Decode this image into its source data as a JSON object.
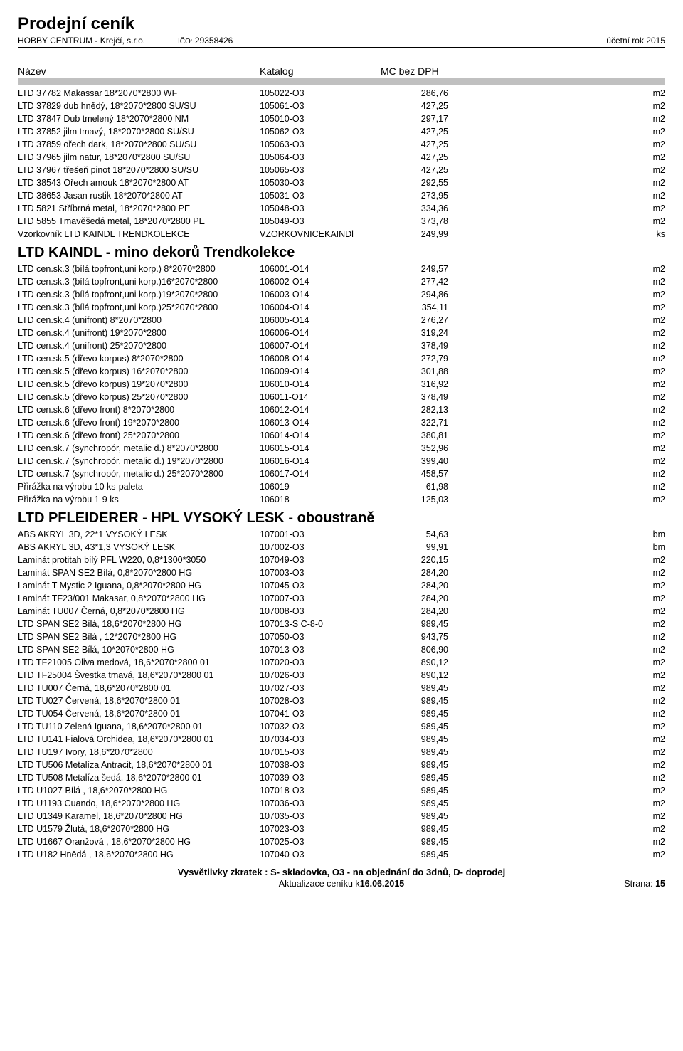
{
  "header": {
    "title": "Prodejní ceník",
    "company": "HOBBY CENTRUM - Krejčí, s.r.o.",
    "ico_label": "IČO:",
    "ico": "29358426",
    "year": "účetní rok 2015"
  },
  "columns": {
    "name": "Název",
    "catalog": "Katalog",
    "mc": "MC bez DPH"
  },
  "section1": {
    "rows": [
      {
        "name": "LTD 37782 Makassar 18*2070*2800 WF",
        "cat": "105022-O3",
        "price": "286,76",
        "unit": "m2"
      },
      {
        "name": "LTD 37829 dub hnědý, 18*2070*2800 SU/SU",
        "cat": "105061-O3",
        "price": "427,25",
        "unit": "m2"
      },
      {
        "name": "LTD 37847 Dub tmelený 18*2070*2800 NM",
        "cat": "105010-O3",
        "price": "297,17",
        "unit": "m2"
      },
      {
        "name": "LTD 37852 jilm tmavý, 18*2070*2800 SU/SU",
        "cat": "105062-O3",
        "price": "427,25",
        "unit": "m2"
      },
      {
        "name": "LTD 37859 ořech dark, 18*2070*2800 SU/SU",
        "cat": "105063-O3",
        "price": "427,25",
        "unit": "m2"
      },
      {
        "name": "LTD 37965 jilm natur, 18*2070*2800 SU/SU",
        "cat": "105064-O3",
        "price": "427,25",
        "unit": "m2"
      },
      {
        "name": "LTD 37967 třešeň pinot 18*2070*2800 SU/SU",
        "cat": "105065-O3",
        "price": "427,25",
        "unit": "m2"
      },
      {
        "name": "LTD 38543 Ořech amouk 18*2070*2800 AT",
        "cat": "105030-O3",
        "price": "292,55",
        "unit": "m2"
      },
      {
        "name": "LTD 38653 Jasan rustik 18*2070*2800 AT",
        "cat": "105031-O3",
        "price": "273,95",
        "unit": "m2"
      },
      {
        "name": "LTD 5821 Stříbrná metal, 18*2070*2800 PE",
        "cat": "105048-O3",
        "price": "334,36",
        "unit": "m2"
      },
      {
        "name": "LTD 5855 Tmavěšedá metal, 18*2070*2800 PE",
        "cat": "105049-O3",
        "price": "373,78",
        "unit": "m2"
      },
      {
        "name": "Vzorkovník LTD KAINDL TRENDKOLEKCE",
        "cat": "VZORKOVNICEKAINDl",
        "price": "249,99",
        "unit": "ks"
      }
    ]
  },
  "section2": {
    "title": "LTD KAINDL - mino dekorů Trendkolekce",
    "rows": [
      {
        "name": "LTD cen.sk.3 (bílá topfront,uni korp.) 8*2070*2800",
        "cat": "106001-O14",
        "price": "249,57",
        "unit": "m2"
      },
      {
        "name": "LTD cen.sk.3 (bílá topfront,uni korp.)16*2070*2800",
        "cat": "106002-O14",
        "price": "277,42",
        "unit": "m2"
      },
      {
        "name": "LTD cen.sk.3 (bílá topfront,uni korp.)19*2070*2800",
        "cat": "106003-O14",
        "price": "294,86",
        "unit": "m2"
      },
      {
        "name": "LTD cen.sk.3 (bílá topfront,uni korp.)25*2070*2800",
        "cat": "106004-O14",
        "price": "354,11",
        "unit": "m2"
      },
      {
        "name": "LTD cen.sk.4 (unifront)  8*2070*2800",
        "cat": "106005-O14",
        "price": "276,27",
        "unit": "m2"
      },
      {
        "name": "LTD cen.sk.4 (unifront) 19*2070*2800",
        "cat": "106006-O14",
        "price": "319,24",
        "unit": "m2"
      },
      {
        "name": "LTD cen.sk.4 (unifront) 25*2070*2800",
        "cat": "106007-O14",
        "price": "378,49",
        "unit": "m2"
      },
      {
        "name": "LTD cen.sk.5 (dřevo korpus)  8*2070*2800",
        "cat": "106008-O14",
        "price": "272,79",
        "unit": "m2"
      },
      {
        "name": "LTD cen.sk.5 (dřevo korpus) 16*2070*2800",
        "cat": "106009-O14",
        "price": "301,88",
        "unit": "m2"
      },
      {
        "name": "LTD cen.sk.5 (dřevo korpus) 19*2070*2800",
        "cat": "106010-O14",
        "price": "316,92",
        "unit": "m2"
      },
      {
        "name": "LTD cen.sk.5 (dřevo korpus) 25*2070*2800",
        "cat": "106011-O14",
        "price": "378,49",
        "unit": "m2"
      },
      {
        "name": "LTD cen.sk.6 (dřevo front)  8*2070*2800",
        "cat": "106012-O14",
        "price": "282,13",
        "unit": "m2"
      },
      {
        "name": "LTD cen.sk.6 (dřevo front) 19*2070*2800",
        "cat": "106013-O14",
        "price": "322,71",
        "unit": "m2"
      },
      {
        "name": "LTD cen.sk.6 (dřevo front) 25*2070*2800",
        "cat": "106014-O14",
        "price": "380,81",
        "unit": "m2"
      },
      {
        "name": "LTD cen.sk.7 (synchropór, metalic d.)  8*2070*2800",
        "cat": "106015-O14",
        "price": "352,96",
        "unit": "m2"
      },
      {
        "name": "LTD cen.sk.7 (synchropór, metalic d.) 19*2070*2800",
        "cat": "106016-O14",
        "price": "399,40",
        "unit": "m2"
      },
      {
        "name": "LTD cen.sk.7 (synchropór, metalic d.) 25*2070*2800",
        "cat": "106017-O14",
        "price": "458,57",
        "unit": "m2"
      },
      {
        "name": "Přirážka na výrobu 10 ks-paleta",
        "cat": "106019",
        "price": "61,98",
        "unit": "m2"
      },
      {
        "name": "Přirážka na výrobu 1-9 ks",
        "cat": "106018",
        "price": "125,03",
        "unit": "m2"
      }
    ]
  },
  "section3": {
    "title": "LTD PFLEIDERER - HPL VYSOKÝ LESK - oboustraně",
    "rows": [
      {
        "name": "ABS AKRYL 3D, 22*1 VYSOKÝ LESK",
        "cat": "107001-O3",
        "price": "54,63",
        "unit": "bm"
      },
      {
        "name": "ABS AKRYL 3D, 43*1,3 VYSOKÝ LESK",
        "cat": "107002-O3",
        "price": "99,91",
        "unit": "bm"
      },
      {
        "name": "Laminát protitah bílý PFL W220, 0,8*1300*3050",
        "cat": "107049-O3",
        "price": "220,15",
        "unit": "m2"
      },
      {
        "name": "Laminát SPAN SE2 Bílá, 0,8*2070*2800 HG",
        "cat": "107003-O3",
        "price": "284,20",
        "unit": "m2"
      },
      {
        "name": "Laminát T Mystic 2 Iguana, 0,8*2070*2800  HG",
        "cat": "107045-O3",
        "price": "284,20",
        "unit": "m2"
      },
      {
        "name": "Laminát TF23/001 Makasar, 0,8*2070*2800  HG",
        "cat": "107007-O3",
        "price": "284,20",
        "unit": "m2"
      },
      {
        "name": "Laminát TU007 Černá, 0,8*2070*2800  HG",
        "cat": "107008-O3",
        "price": "284,20",
        "unit": "m2"
      },
      {
        "name": "LTD SPAN SE2  Bílá, 18,6*2070*2800  HG",
        "cat": "107013-S    C-8-0",
        "price": "989,45",
        "unit": "m2"
      },
      {
        "name": "LTD SPAN SE2 Bílá , 12*2070*2800 HG",
        "cat": "107050-O3",
        "price": "943,75",
        "unit": "m2"
      },
      {
        "name": "LTD SPAN SE2 Bílá, 10*2070*2800 HG",
        "cat": "107013-O3",
        "price": "806,90",
        "unit": "m2"
      },
      {
        "name": "LTD TF21005 Oliva medová, 18,6*2070*2800  01",
        "cat": "107020-O3",
        "price": "890,12",
        "unit": "m2"
      },
      {
        "name": "LTD TF25004 Švestka tmavá, 18,6*2070*2800 01",
        "cat": "107026-O3",
        "price": "890,12",
        "unit": "m2"
      },
      {
        "name": "LTD TU007 Černá, 18,6*2070*2800  01",
        "cat": "107027-O3",
        "price": "989,45",
        "unit": "m2"
      },
      {
        "name": "LTD TU027 Červená, 18,6*2070*2800  01",
        "cat": "107028-O3",
        "price": "989,45",
        "unit": "m2"
      },
      {
        "name": "LTD TU054 Červená, 18,6*2070*2800  01",
        "cat": "107041-O3",
        "price": "989,45",
        "unit": "m2"
      },
      {
        "name": "LTD TU110 Zelená Iguana, 18,6*2070*2800  01",
        "cat": "107032-O3",
        "price": "989,45",
        "unit": "m2"
      },
      {
        "name": "LTD TU141 Fialová Orchidea, 18,6*2070*2800   01",
        "cat": "107034-O3",
        "price": "989,45",
        "unit": "m2"
      },
      {
        "name": "LTD TU197 Ivory, 18,6*2070*2800",
        "cat": "107015-O3",
        "price": "989,45",
        "unit": "m2"
      },
      {
        "name": "LTD TU506 Metalíza Antracit, 18,6*2070*2800  01",
        "cat": "107038-O3",
        "price": "989,45",
        "unit": "m2"
      },
      {
        "name": "LTD TU508 Metalíza šedá, 18,6*2070*2800 01",
        "cat": "107039-O3",
        "price": "989,45",
        "unit": "m2"
      },
      {
        "name": "LTD U1027 Bílá , 18,6*2070*2800  HG",
        "cat": "107018-O3",
        "price": "989,45",
        "unit": "m2"
      },
      {
        "name": "LTD U1193 Cuando, 18,6*2070*2800   HG",
        "cat": "107036-O3",
        "price": "989,45",
        "unit": "m2"
      },
      {
        "name": "LTD U1349 Karamel, 18,6*2070*2800  HG",
        "cat": "107035-O3",
        "price": "989,45",
        "unit": "m2"
      },
      {
        "name": "LTD U1579 Žlutá, 18,6*2070*2800 HG",
        "cat": "107023-O3",
        "price": "989,45",
        "unit": "m2"
      },
      {
        "name": "LTD U1667 Oranžová , 18,6*2070*2800   HG",
        "cat": "107025-O3",
        "price": "989,45",
        "unit": "m2"
      },
      {
        "name": "LTD U182 Hnědá , 18,6*2070*2800  HG",
        "cat": "107040-O3",
        "price": "989,45",
        "unit": "m2"
      }
    ]
  },
  "footer": {
    "legend": "Vysvětlivky zkratek :  S- skladovka,  O3 - na objednání do 3dnů,  D- doprodej",
    "update_label": "Aktualizace ceníku  k  ",
    "update_date": "16.06.2015",
    "page_label": "Strana:",
    "page_num": "15"
  }
}
